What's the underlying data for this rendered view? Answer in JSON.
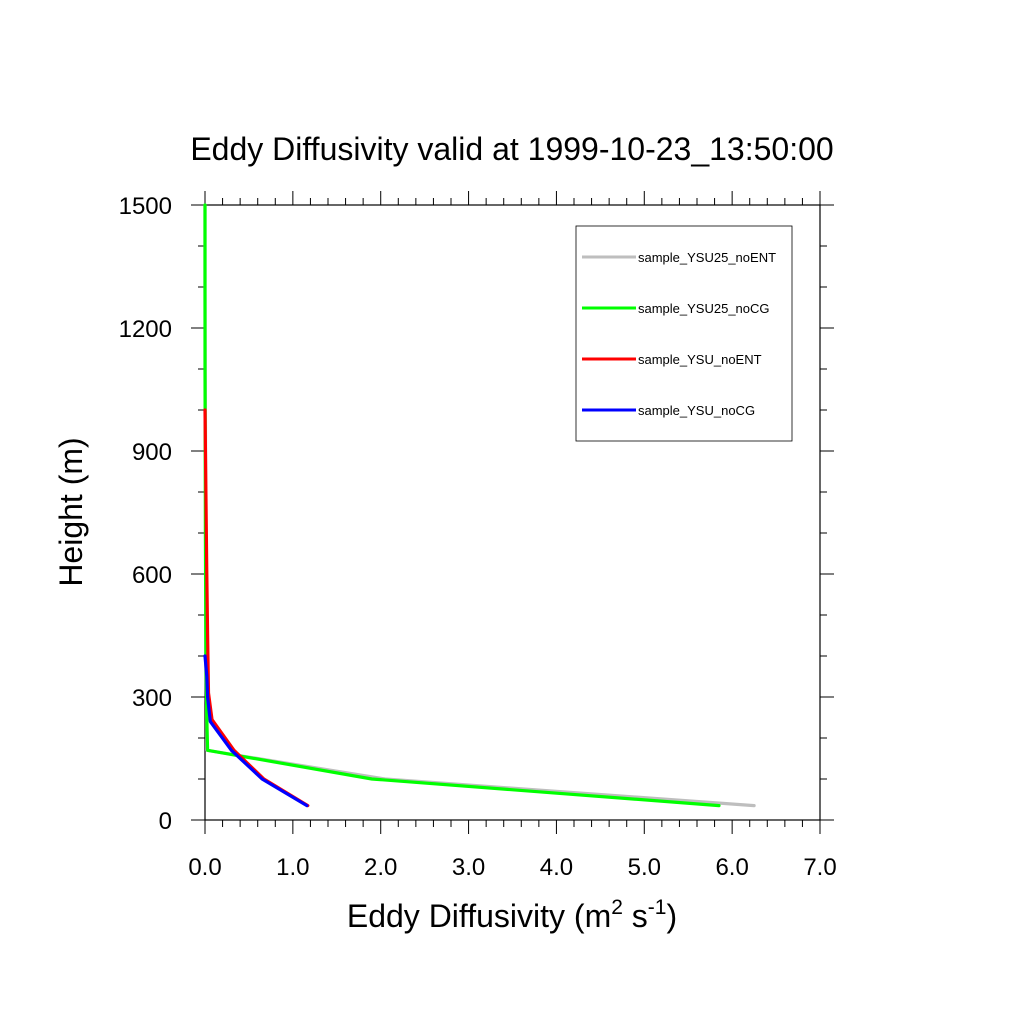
{
  "chart_data": {
    "type": "line",
    "title": "Eddy Diffusivity valid at 1999-10-23_13:50:00",
    "xlabel": {
      "base": "Eddy Diffusivity (m",
      "sup1": "2",
      "mid": " s",
      "sup2": "-1",
      "end": ")"
    },
    "ylabel": "Height (m)",
    "xlim": [
      0,
      7
    ],
    "ylim": [
      0,
      1500
    ],
    "xticks": [
      0,
      1,
      2,
      3,
      4,
      5,
      6,
      7
    ],
    "xtick_labels": [
      "0.0",
      "1.0",
      "2.0",
      "3.0",
      "4.0",
      "5.0",
      "6.0",
      "7.0"
    ],
    "yticks": [
      0,
      300,
      600,
      900,
      1200,
      1500
    ],
    "ytick_labels": [
      "0",
      "300",
      "600",
      "900",
      "1200",
      "1500"
    ],
    "legend_position": "top-right",
    "series": [
      {
        "name": "sample_YSU25_noENT",
        "color": "#bebebe",
        "x": [
          6.25,
          2.05,
          0.02,
          0.02,
          0.01,
          0.01,
          0.005,
          0.0,
          0.0
        ],
        "y": [
          35,
          100,
          170,
          250,
          400,
          700,
          1000,
          1300,
          1500
        ]
      },
      {
        "name": "sample_YSU25_noCG",
        "color": "#00ff00",
        "x": [
          5.85,
          1.9,
          0.03,
          0.02,
          0.01,
          0.005,
          0.0,
          0.0
        ],
        "y": [
          35,
          100,
          170,
          250,
          400,
          700,
          1100,
          1500
        ]
      },
      {
        "name": "sample_YSU_noENT",
        "color": "#ff0000",
        "x": [
          1.17,
          0.67,
          0.33,
          0.08,
          0.04,
          0.03,
          0.02,
          0.01,
          0.0
        ],
        "y": [
          35,
          100,
          170,
          245,
          310,
          450,
          600,
          800,
          1000
        ]
      },
      {
        "name": "sample_YSU_noCG",
        "color": "#0000ff",
        "x": [
          1.16,
          0.65,
          0.3,
          0.06,
          0.03,
          0.02,
          0.0
        ],
        "y": [
          35,
          100,
          170,
          240,
          300,
          350,
          400
        ]
      }
    ]
  }
}
